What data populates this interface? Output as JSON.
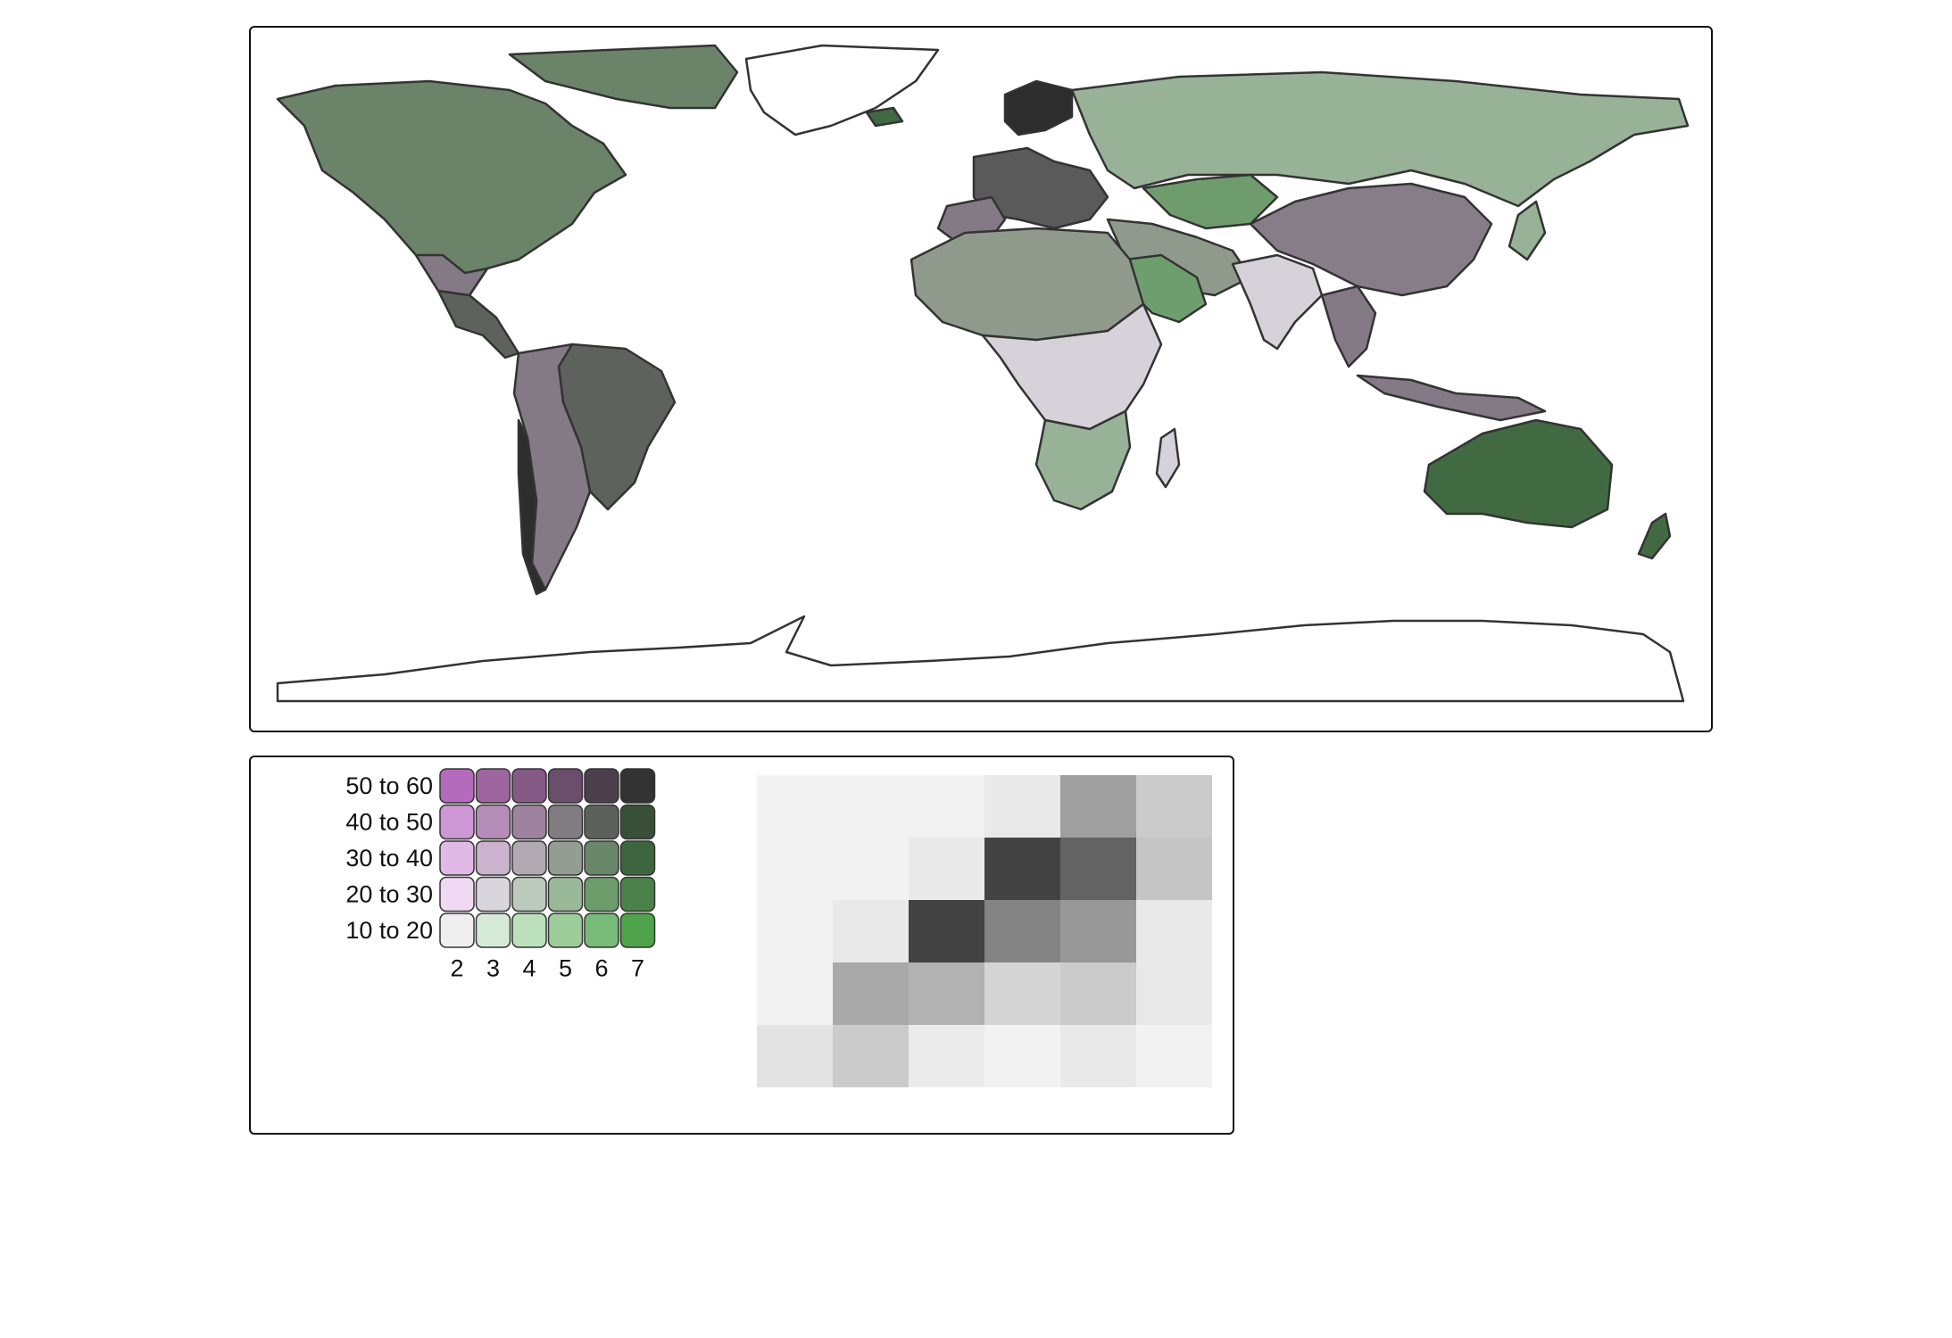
{
  "map": {
    "country_colors": {
      "ocean": "#ffffff",
      "border": "#333333",
      "north_america": "#6b8469",
      "russia": "#98b298",
      "greenland": "#ffffff",
      "australia": "#426a42",
      "china": "#877d88",
      "south_america_brazil": "#5e625d",
      "argentina": "#847a86",
      "africa_north": "#8f9a8c",
      "india": "#d7d2d9",
      "kazakhstan": "#6f9c6d",
      "europe": "#5a5a5a",
      "scandinavia": "#2d2d2d",
      "saudi": "#6e9e6d",
      "antarctica": "#ffffff"
    }
  },
  "legend": {
    "row_labels": [
      "50 to 60",
      "40 to 50",
      "30 to 40",
      "20 to 30",
      "10 to 20"
    ],
    "col_labels": [
      "2",
      "3",
      "4",
      "5",
      "6",
      "7"
    ],
    "colors": [
      [
        "#b56bbb",
        "#9f65a1",
        "#865a87",
        "#6a4e6c",
        "#4b3f4c",
        "#333333"
      ],
      [
        "#cc97d4",
        "#b68db9",
        "#9d839f",
        "#807c82",
        "#5d615c",
        "#384f38"
      ],
      [
        "#e1b9e6",
        "#cbb3cd",
        "#b2aab3",
        "#939d91",
        "#6a8769",
        "#3e663e"
      ],
      [
        "#f0d9f2",
        "#d9d5dc",
        "#bbcabc",
        "#9ab998",
        "#6c9d6b",
        "#4a8249"
      ],
      [
        "#eeeeee",
        "#d5ead6",
        "#bbe0bb",
        "#9ccd9b",
        "#78ba77",
        "#4ea34b"
      ]
    ]
  },
  "chart_data": {
    "type": "heatmap",
    "title": "",
    "rows": 5,
    "cols": 6,
    "values": [
      [
        0.03,
        0.03,
        0.03,
        0.07,
        0.42,
        0.21
      ],
      [
        0.03,
        0.03,
        0.07,
        0.85,
        0.7,
        0.24
      ],
      [
        0.03,
        0.07,
        0.85,
        0.55,
        0.45,
        0.07
      ],
      [
        0.03,
        0.37,
        0.33,
        0.17,
        0.21,
        0.07
      ],
      [
        0.1,
        0.21,
        0.06,
        0.03,
        0.07,
        0.03
      ]
    ]
  }
}
